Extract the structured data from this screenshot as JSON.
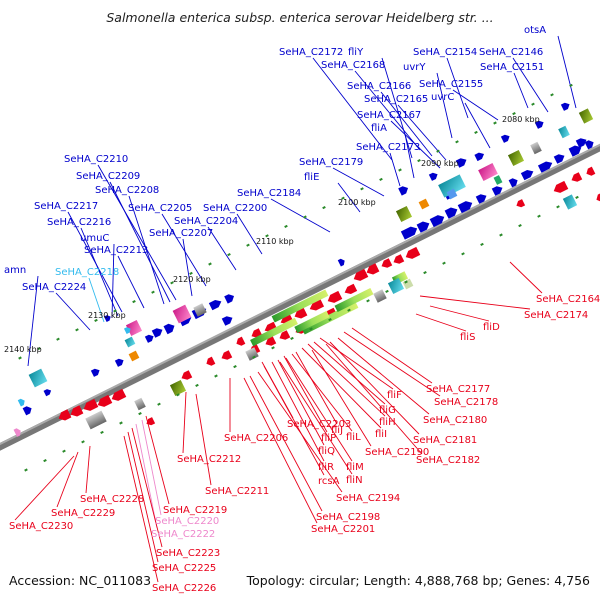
{
  "title": "Salmonella enterica subsp. enterica serovar Heidelberg str. ...",
  "footer": {
    "accession": "Accession: NC_011083",
    "topology": "Topology: circular; Length: 4,888,768 bp; Genes: 4,756"
  },
  "colors": {
    "plus_strand": "#0000cc",
    "minus_strand": "#e8001a",
    "highlight": "#33bbee",
    "pink": "#ee88cc",
    "backbone": "#707070"
  },
  "ticks": [
    "2080 kbp",
    "2090 kbp",
    "2100 kbp",
    "2110 kbp",
    "2120 kbp",
    "2130 kbp",
    "2140 kbp"
  ],
  "labels_top": [
    {
      "text": "otsA"
    },
    {
      "text": "SeHA_C2172"
    },
    {
      "text": "fliY"
    },
    {
      "text": "SeHA_C2154"
    },
    {
      "text": "SeHA_C2146"
    },
    {
      "text": "SeHA_C2168"
    },
    {
      "text": "uvrY"
    },
    {
      "text": "SeHA_C2151"
    },
    {
      "text": "SeHA_C2166"
    },
    {
      "text": "SeHA_C2155"
    },
    {
      "text": "SeHA_C2165"
    },
    {
      "text": "uvrC"
    },
    {
      "text": "SeHA_C2167"
    },
    {
      "text": "fliA"
    },
    {
      "text": "SeHA_C2173"
    },
    {
      "text": "SeHA_C2179"
    },
    {
      "text": "fliE"
    },
    {
      "text": "SeHA_C2184"
    },
    {
      "text": "SeHA_C2200"
    },
    {
      "text": "SeHA_C2210"
    },
    {
      "text": "SeHA_C2209"
    },
    {
      "text": "SeHA_C2208"
    },
    {
      "text": "SeHA_C2217"
    },
    {
      "text": "SeHA_C2205"
    },
    {
      "text": "SeHA_C2216"
    },
    {
      "text": "SeHA_C2204"
    },
    {
      "text": "umuC"
    },
    {
      "text": "SeHA_C2207"
    },
    {
      "text": "SeHA_C2213"
    },
    {
      "text": "amn"
    },
    {
      "text": "SeHA_C2218"
    },
    {
      "text": "SeHA_C2224"
    }
  ],
  "labels_bottom": [
    {
      "text": "SeHA_C2164"
    },
    {
      "text": "SeHA_C2174"
    },
    {
      "text": "fliD"
    },
    {
      "text": "fliS"
    },
    {
      "text": "SeHA_C2177"
    },
    {
      "text": "SeHA_C2178"
    },
    {
      "text": "fliF"
    },
    {
      "text": "fliG"
    },
    {
      "text": "SeHA_C2180"
    },
    {
      "text": "fliH"
    },
    {
      "text": "fliI"
    },
    {
      "text": "SeHA_C2181"
    },
    {
      "text": "fliJ"
    },
    {
      "text": "fliL"
    },
    {
      "text": "SeHA_C2182"
    },
    {
      "text": "fliP"
    },
    {
      "text": "SeHA_C2190"
    },
    {
      "text": "SeHA_C2203"
    },
    {
      "text": "fliQ"
    },
    {
      "text": "fliM"
    },
    {
      "text": "SeHA_C2206"
    },
    {
      "text": "fliR"
    },
    {
      "text": "fliN"
    },
    {
      "text": "rcsA"
    },
    {
      "text": "SeHA_C2212"
    },
    {
      "text": "SeHA_C2194"
    },
    {
      "text": "SeHA_C2211"
    },
    {
      "text": "SeHA_C2228"
    },
    {
      "text": "SeHA_C2219"
    },
    {
      "text": "SeHA_C2229"
    },
    {
      "text": "SeHA_C2198"
    },
    {
      "text": "SeHA_C2220"
    },
    {
      "text": "SeHA_C2230"
    },
    {
      "text": "SeHA_C2201"
    },
    {
      "text": "SeHA_C2222"
    },
    {
      "text": "SeHA_C2223"
    },
    {
      "text": "SeHA_C2225"
    },
    {
      "text": "SeHA_C2226"
    }
  ]
}
